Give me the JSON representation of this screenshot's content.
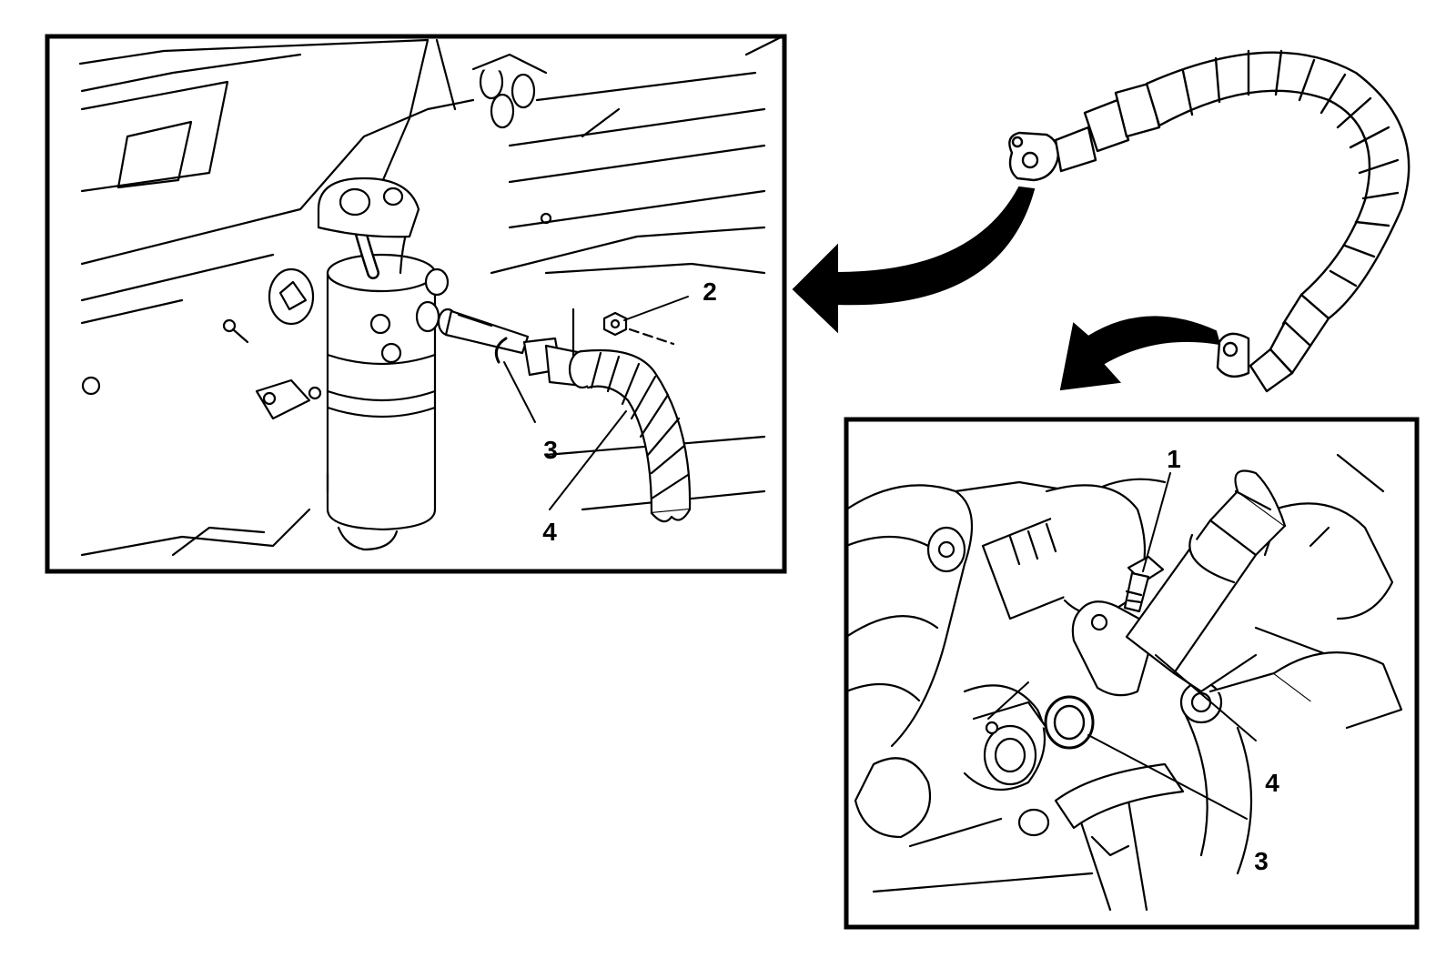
{
  "figure": {
    "colors": {
      "ink": "#000000",
      "paper": "#ffffff",
      "fill": "#f2f2f2"
    }
  },
  "left_panel": {
    "callouts": [
      {
        "id": "callout-2",
        "label": "2"
      },
      {
        "id": "callout-3",
        "label": "3"
      },
      {
        "id": "callout-4",
        "label": "4"
      }
    ]
  },
  "right_panel": {
    "callouts": [
      {
        "id": "callout-1",
        "label": "1"
      },
      {
        "id": "callout-4",
        "label": "4"
      },
      {
        "id": "callout-3",
        "label": "3"
      }
    ]
  },
  "arrows": [
    {
      "id": "arrow-to-left-panel",
      "icon": "curved-arrow-icon"
    },
    {
      "id": "arrow-to-right-panel",
      "icon": "curved-arrow-icon"
    }
  ]
}
